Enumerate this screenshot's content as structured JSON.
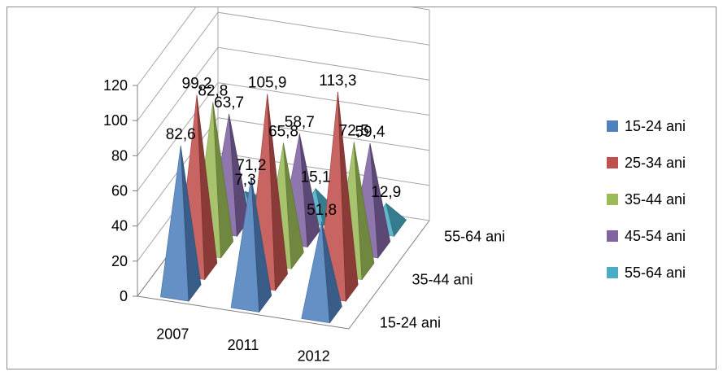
{
  "chart_data": {
    "type": "bar",
    "style": "3d-pyramid",
    "categories": [
      "2007",
      "2011",
      "2012"
    ],
    "depth_categories": [
      "15-24 ani",
      "35-44 ani",
      "55-64 ani"
    ],
    "ylim": [
      0,
      120
    ],
    "yticks": [
      "0",
      "20",
      "40",
      "60",
      "80",
      "100",
      "120"
    ],
    "grid": true,
    "legend_position": "right",
    "series": [
      {
        "name": "15-24 ani",
        "color": "#4f81bd",
        "values": [
          82.6,
          71.2,
          51.8
        ],
        "labels": [
          "82,6",
          "71,2",
          "51,8"
        ]
      },
      {
        "name": "25-34 ani",
        "color": "#c0504d",
        "values": [
          99.2,
          105.9,
          113.3
        ],
        "labels": [
          "99,2",
          "105,9",
          "113,3"
        ]
      },
      {
        "name": "35-44 ani",
        "color": "#9bbb59",
        "values": [
          82.8,
          65.8,
          72.5
        ],
        "labels": [
          "82,8",
          "65,8",
          "72,5"
        ]
      },
      {
        "name": "45-54 ani",
        "color": "#8064a2",
        "values": [
          63.7,
          58.7,
          59.4
        ],
        "labels": [
          "63,7",
          "58,7",
          "59,4"
        ]
      },
      {
        "name": "55-64 ani",
        "color": "#4bacc6",
        "values": [
          7.3,
          15.1,
          12.9
        ],
        "labels": [
          "7,3",
          "15,1",
          "12,9"
        ]
      }
    ]
  }
}
